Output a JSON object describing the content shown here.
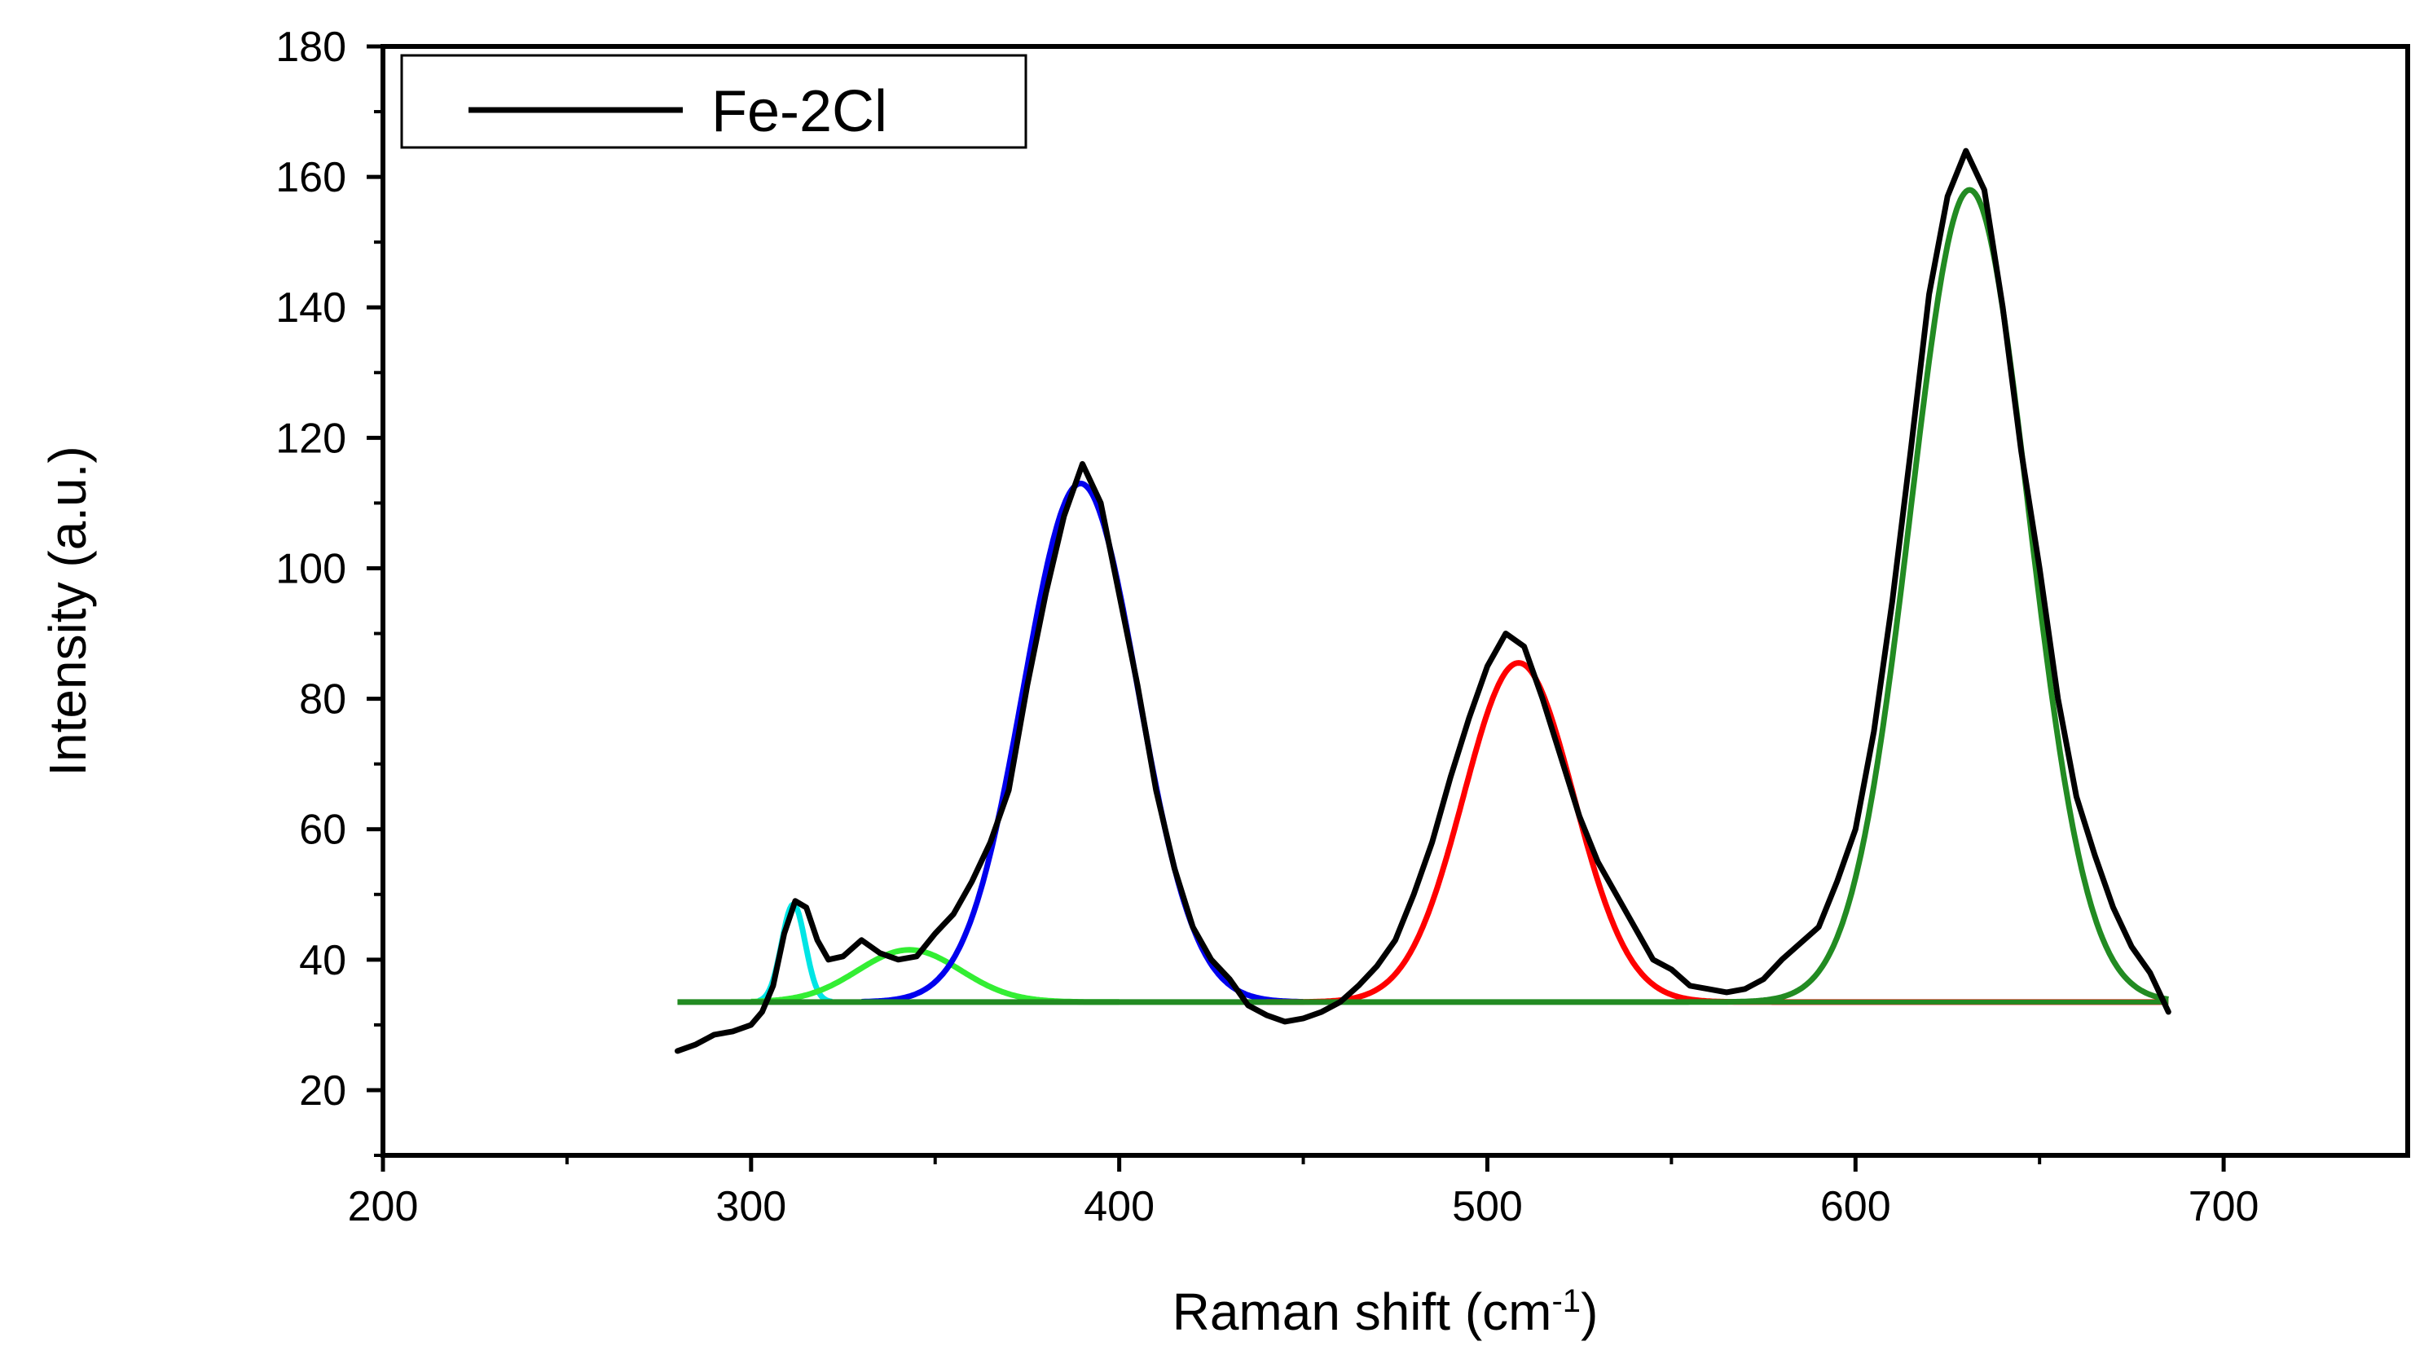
{
  "chart_data": {
    "type": "line",
    "title": "",
    "xlabel_main": "Raman shift (cm",
    "xlabel_sup": "-1",
    "xlabel_close": ")",
    "ylabel": "Intensity (a.u.)",
    "xlim": [
      200,
      750
    ],
    "ylim": [
      10,
      180
    ],
    "x_ticks": [
      200,
      300,
      400,
      500,
      600,
      700
    ],
    "y_ticks": [
      20,
      40,
      60,
      80,
      100,
      120,
      140,
      160,
      180
    ],
    "legend": {
      "label": "Fe-2Cl",
      "placement": "top-left"
    },
    "baseline": 33.5,
    "raw_series": {
      "name": "Fe-2Cl",
      "color": "#000000",
      "points": [
        [
          280,
          26
        ],
        [
          285,
          27
        ],
        [
          290,
          28.5
        ],
        [
          295,
          29
        ],
        [
          300,
          30
        ],
        [
          303,
          32
        ],
        [
          306,
          36
        ],
        [
          309,
          44
        ],
        [
          312,
          49
        ],
        [
          315,
          48
        ],
        [
          318,
          43
        ],
        [
          321,
          40
        ],
        [
          325,
          40.5
        ],
        [
          330,
          43
        ],
        [
          335,
          41
        ],
        [
          340,
          40
        ],
        [
          345,
          40.5
        ],
        [
          350,
          44
        ],
        [
          355,
          47
        ],
        [
          360,
          52
        ],
        [
          365,
          58
        ],
        [
          370,
          66
        ],
        [
          375,
          82
        ],
        [
          380,
          96
        ],
        [
          385,
          108
        ],
        [
          390,
          116
        ],
        [
          395,
          110
        ],
        [
          400,
          96
        ],
        [
          405,
          82
        ],
        [
          410,
          66
        ],
        [
          415,
          54
        ],
        [
          420,
          45
        ],
        [
          425,
          40
        ],
        [
          430,
          37
        ],
        [
          435,
          33
        ],
        [
          440,
          31.5
        ],
        [
          445,
          30.5
        ],
        [
          450,
          31
        ],
        [
          455,
          32
        ],
        [
          460,
          33.5
        ],
        [
          465,
          36
        ],
        [
          470,
          39
        ],
        [
          475,
          43
        ],
        [
          480,
          50
        ],
        [
          485,
          58
        ],
        [
          490,
          68
        ],
        [
          495,
          77
        ],
        [
          500,
          85
        ],
        [
          505,
          90
        ],
        [
          510,
          88
        ],
        [
          515,
          80
        ],
        [
          520,
          71
        ],
        [
          525,
          62
        ],
        [
          530,
          55
        ],
        [
          535,
          50
        ],
        [
          540,
          45
        ],
        [
          545,
          40
        ],
        [
          550,
          38.5
        ],
        [
          555,
          36
        ],
        [
          560,
          35.5
        ],
        [
          565,
          35
        ],
        [
          570,
          35.5
        ],
        [
          575,
          37
        ],
        [
          580,
          40
        ],
        [
          585,
          42.5
        ],
        [
          590,
          45
        ],
        [
          595,
          52
        ],
        [
          600,
          60
        ],
        [
          605,
          75
        ],
        [
          610,
          95
        ],
        [
          615,
          118
        ],
        [
          620,
          142
        ],
        [
          625,
          157
        ],
        [
          630,
          164
        ],
        [
          635,
          158
        ],
        [
          640,
          140
        ],
        [
          645,
          118
        ],
        [
          650,
          100
        ],
        [
          655,
          80
        ],
        [
          660,
          65
        ],
        [
          665,
          56
        ],
        [
          670,
          48
        ],
        [
          675,
          42
        ],
        [
          680,
          38
        ],
        [
          685,
          32
        ]
      ]
    },
    "fit_series": [
      {
        "name": "peak 1",
        "color": "#00e5e5",
        "center": 311.5,
        "amplitude": 15,
        "sigma": 3.2,
        "x_range": [
          302,
          322
        ]
      },
      {
        "name": "peak 2",
        "color": "#33ee33",
        "center": 343,
        "amplitude": 8,
        "sigma": 14,
        "x_range": [
          300,
          400
        ]
      },
      {
        "name": "peak 3",
        "color": "#0000ee",
        "center": 389.5,
        "amplitude": 79.5,
        "sigma": 15.5,
        "x_range": [
          330,
          450
        ]
      },
      {
        "name": "peak 4",
        "color": "#ff0000",
        "center": 508.5,
        "amplitude": 52,
        "sigma": 15,
        "x_range": [
          440,
          685
        ]
      },
      {
        "name": "peak 5",
        "color": "#228b22",
        "center": 631,
        "amplitude": 124.5,
        "sigma": 16,
        "x_range": [
          280,
          685
        ]
      }
    ]
  }
}
